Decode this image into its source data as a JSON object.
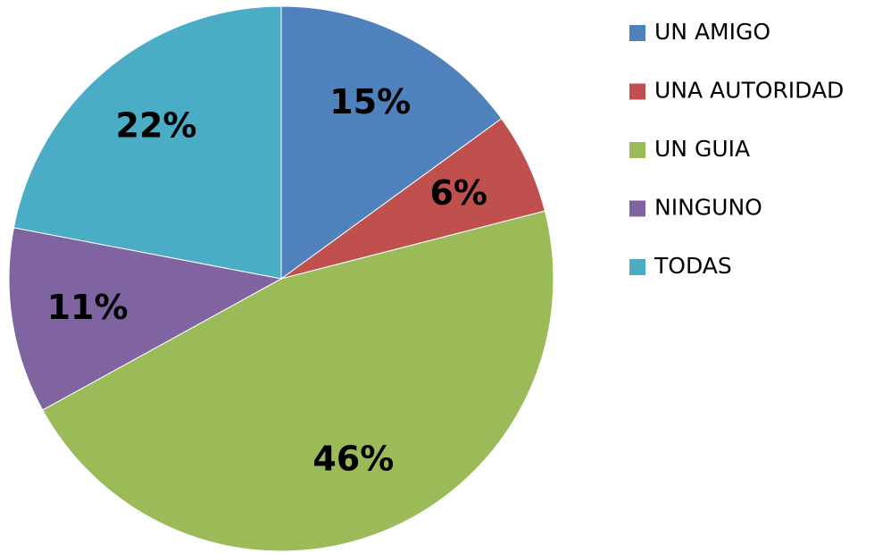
{
  "chart_data": {
    "type": "pie",
    "categories": [
      "UN AMIGO",
      "UNA AUTORIDAD",
      "UN GUIA",
      "NINGUNO",
      "TODAS"
    ],
    "values": [
      15,
      6,
      46,
      11,
      22
    ],
    "value_labels": [
      "15%",
      "6%",
      "46%",
      "11%",
      "22%"
    ],
    "colors": [
      "#4f81bd",
      "#c0504d",
      "#9bbb59",
      "#8064a2",
      "#4bacc6"
    ],
    "legend": "right"
  }
}
